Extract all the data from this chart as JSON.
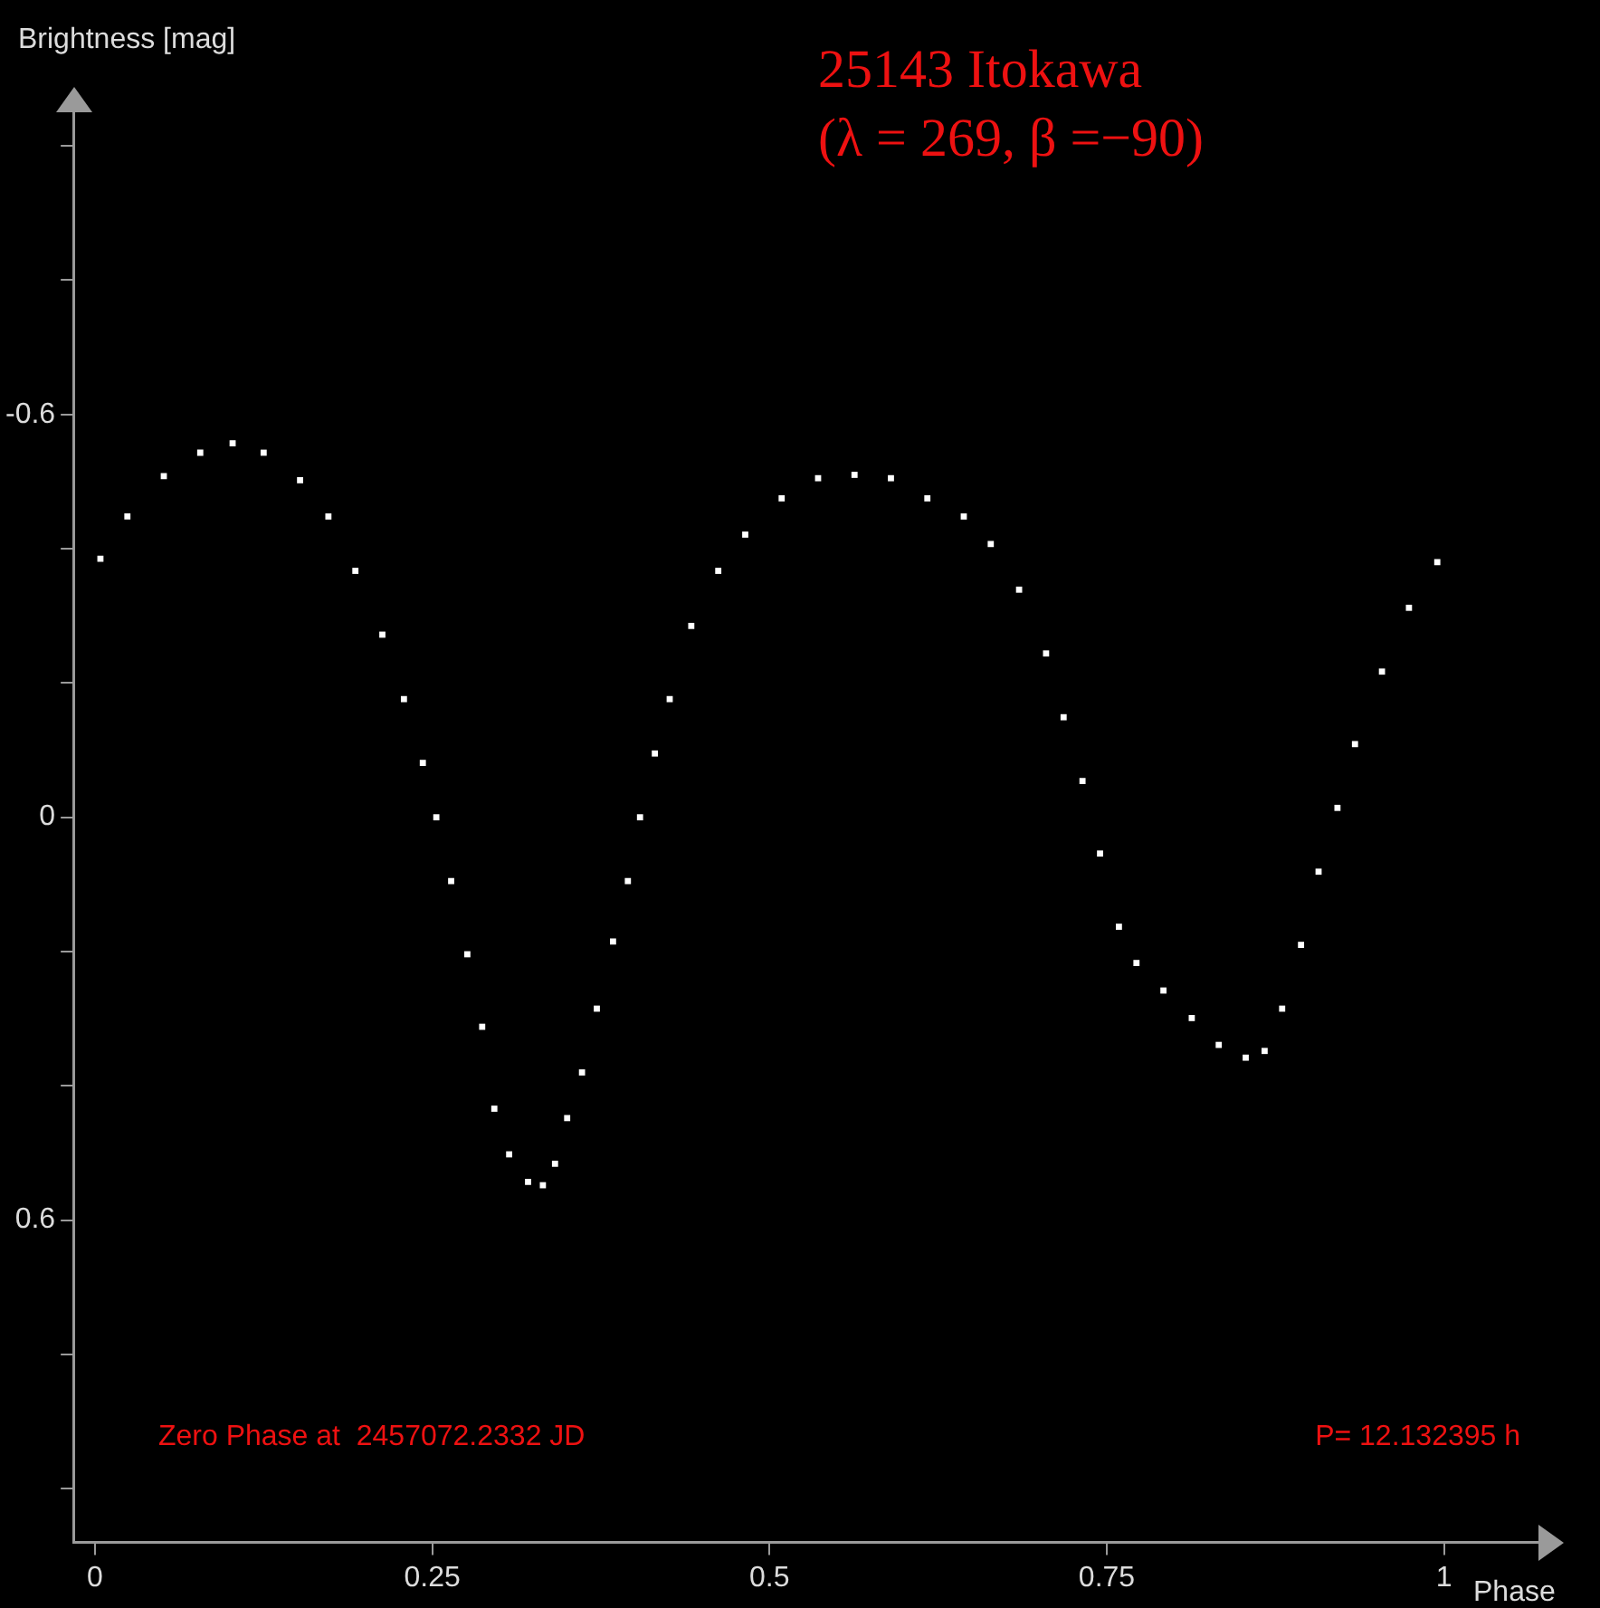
{
  "chart_data": {
    "type": "scatter",
    "title": "25143 Itokawa",
    "subtitle": "(λ = 269, β =−90)",
    "xlabel": "Phase",
    "ylabel": "Brightness [mag]",
    "annotations": [
      "Zero Phase at  2457072.2332 JD",
      "P= 12.132395 h"
    ],
    "x": [
      0.004,
      0.024,
      0.051,
      0.078,
      0.102,
      0.125,
      0.152,
      0.173,
      0.193,
      0.213,
      0.229,
      0.243,
      0.253,
      0.264,
      0.276,
      0.287,
      0.296,
      0.307,
      0.321,
      0.332,
      0.341,
      0.35,
      0.361,
      0.372,
      0.384,
      0.395,
      0.404,
      0.415,
      0.426,
      0.442,
      0.462,
      0.482,
      0.509,
      0.536,
      0.563,
      0.59,
      0.617,
      0.644,
      0.664,
      0.685,
      0.705,
      0.718,
      0.732,
      0.745,
      0.759,
      0.772,
      0.792,
      0.813,
      0.833,
      0.853,
      0.867,
      0.88,
      0.894,
      0.907,
      0.921,
      0.934,
      0.954,
      0.974,
      0.995
    ],
    "series": [
      {
        "color": "#ffffff",
        "values": [
          -0.385,
          -0.448,
          -0.508,
          -0.543,
          -0.557,
          -0.543,
          -0.502,
          -0.448,
          -0.367,
          -0.272,
          -0.176,
          -0.081,
          0,
          0.095,
          0.204,
          0.312,
          0.434,
          0.502,
          0.543,
          0.548,
          0.516,
          0.448,
          0.38,
          0.285,
          0.185,
          0.095,
          0,
          -0.095,
          -0.176,
          -0.285,
          -0.367,
          -0.421,
          -0.475,
          -0.505,
          -0.51,
          -0.505,
          -0.475,
          -0.448,
          -0.407,
          -0.339,
          -0.244,
          -0.149,
          -0.054,
          0.054,
          0.163,
          0.217,
          0.258,
          0.299,
          0.339,
          0.358,
          0.348,
          0.285,
          0.19,
          0.081,
          -0.014,
          -0.109,
          -0.217,
          -0.312,
          -0.38
        ]
      }
    ],
    "xlim": [
      -0.016,
      1.07
    ],
    "xticks": [
      0,
      0.25,
      0.5,
      0.75,
      1
    ],
    "ylim": [
      1.08,
      -1.05
    ],
    "yticks": [
      {
        "value": -1,
        "label": null
      },
      {
        "value": -0.8,
        "label": null
      },
      -0.6,
      {
        "value": -0.4,
        "label": null
      },
      {
        "value": -0.2,
        "label": null
      },
      0,
      {
        "value": 0.2,
        "label": null
      },
      {
        "value": 0.4,
        "label": null
      },
      0.6,
      {
        "value": 0.8,
        "label": null
      },
      {
        "value": 1,
        "label": null
      }
    ],
    "marker": "square",
    "grid": false,
    "legend": false
  }
}
